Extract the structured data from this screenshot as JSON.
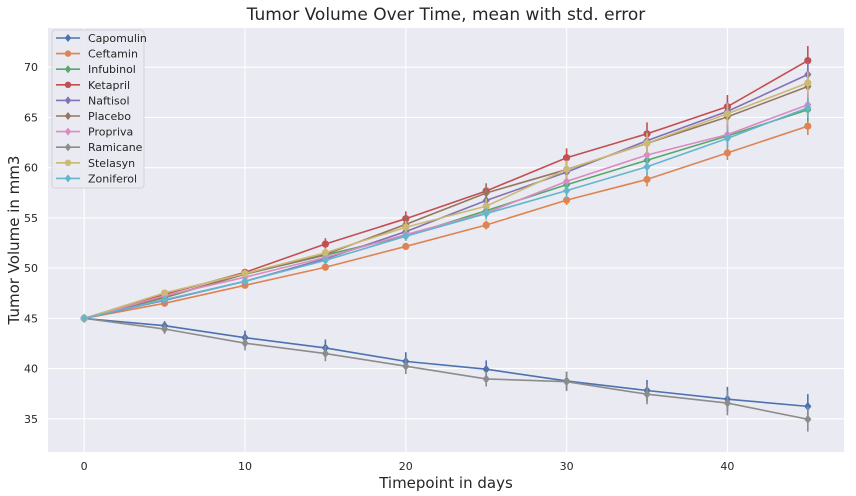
{
  "chart_data": {
    "type": "line",
    "title": "Tumor Volume Over Time, mean with std. error",
    "xlabel": "Timepoint in days",
    "ylabel": "Tumor Volume in mm3",
    "xlim": [
      -2.25,
      47.25
    ],
    "ylim": [
      31.7,
      73.9
    ],
    "xticks": [
      0,
      10,
      20,
      30,
      40
    ],
    "yticks": [
      35,
      40,
      45,
      50,
      55,
      60,
      65,
      70
    ],
    "grid": true,
    "legend_position": "top-left",
    "x": [
      0,
      5,
      10,
      15,
      20,
      25,
      30,
      35,
      40,
      45
    ],
    "series": [
      {
        "name": "Capomulin",
        "color": "#4c72b0",
        "marker": "diamond",
        "values": [
          45.0,
          44.27,
          43.08,
          42.06,
          40.72,
          39.94,
          38.77,
          37.82,
          36.96,
          36.24
        ],
        "errors": [
          0,
          0.45,
          0.7,
          0.84,
          0.91,
          0.88,
          0.93,
          1.05,
          1.22,
          1.22
        ]
      },
      {
        "name": "Ceftamin",
        "color": "#dd8452",
        "marker": "circle",
        "values": [
          45.0,
          46.5,
          48.29,
          50.09,
          52.16,
          54.29,
          56.77,
          58.83,
          61.47,
          64.13
        ],
        "errors": [
          0,
          0.16,
          0.24,
          0.33,
          0.36,
          0.44,
          0.49,
          0.69,
          0.71,
          0.88
        ]
      },
      {
        "name": "Infubinol",
        "color": "#55a868",
        "marker": "diamond",
        "values": [
          45.0,
          47.06,
          49.4,
          51.3,
          53.2,
          55.72,
          58.3,
          60.74,
          63.16,
          65.76
        ],
        "errors": [
          0,
          0.24,
          0.28,
          0.36,
          0.48,
          0.55,
          0.63,
          0.98,
          1.06,
          1.14
        ]
      },
      {
        "name": "Ketapril",
        "color": "#c44e52",
        "marker": "circle",
        "values": [
          45.0,
          47.39,
          49.58,
          52.4,
          54.92,
          57.68,
          60.99,
          63.37,
          66.07,
          70.66
        ],
        "errors": [
          0,
          0.26,
          0.36,
          0.58,
          0.73,
          0.76,
          0.93,
          1.13,
          1.16,
          1.45
        ]
      },
      {
        "name": "Naftisol",
        "color": "#8172b3",
        "marker": "diamond",
        "values": [
          45.0,
          46.8,
          48.69,
          50.93,
          53.64,
          56.73,
          59.56,
          62.69,
          65.6,
          69.27
        ],
        "errors": [
          0,
          0.2,
          0.42,
          0.56,
          0.79,
          0.81,
          0.97,
          1.01,
          0.98,
          1.27
        ]
      },
      {
        "name": "Placebo",
        "color": "#937860",
        "marker": "diamond",
        "values": [
          45.0,
          47.13,
          49.42,
          51.36,
          54.36,
          57.48,
          59.81,
          62.42,
          65.05,
          68.08
        ],
        "errors": [
          0,
          0.22,
          0.4,
          0.61,
          0.84,
          0.88,
          0.99,
          1.2,
          1.25,
          1.45
        ]
      },
      {
        "name": "Propriva",
        "color": "#da8bc3",
        "marker": "diamond",
        "values": [
          45.0,
          47.25,
          49.1,
          51.07,
          53.35,
          55.5,
          58.63,
          61.26,
          63.29,
          66.26
        ],
        "errors": [
          0,
          0.23,
          0.38,
          0.47,
          0.56,
          0.63,
          0.76,
          0.88,
          1.1,
          1.25
        ]
      },
      {
        "name": "Ramicane",
        "color": "#8c8c8c",
        "marker": "diamond",
        "values": [
          45.0,
          43.94,
          42.53,
          41.5,
          40.24,
          38.97,
          38.7,
          37.45,
          36.57,
          34.96
        ],
        "errors": [
          0,
          0.48,
          0.72,
          0.77,
          0.79,
          0.75,
          0.94,
          1.0,
          1.22,
          1.23
        ]
      },
      {
        "name": "Stelasyn",
        "color": "#ccb974",
        "marker": "circle",
        "values": [
          45.0,
          47.53,
          49.46,
          51.53,
          54.07,
          56.17,
          59.83,
          62.44,
          65.36,
          68.44
        ],
        "errors": [
          0,
          0.24,
          0.43,
          0.49,
          0.62,
          0.74,
          0.9,
          1.0,
          1.06,
          1.13
        ]
      },
      {
        "name": "Zoniferol",
        "color": "#64b5cd",
        "marker": "diamond",
        "values": [
          45.0,
          46.85,
          48.69,
          50.78,
          53.17,
          55.43,
          57.71,
          60.09,
          62.92,
          65.96
        ],
        "errors": [
          0,
          0.19,
          0.26,
          0.35,
          0.44,
          0.58,
          0.75,
          0.88,
          0.91,
          0.99
        ]
      }
    ]
  }
}
